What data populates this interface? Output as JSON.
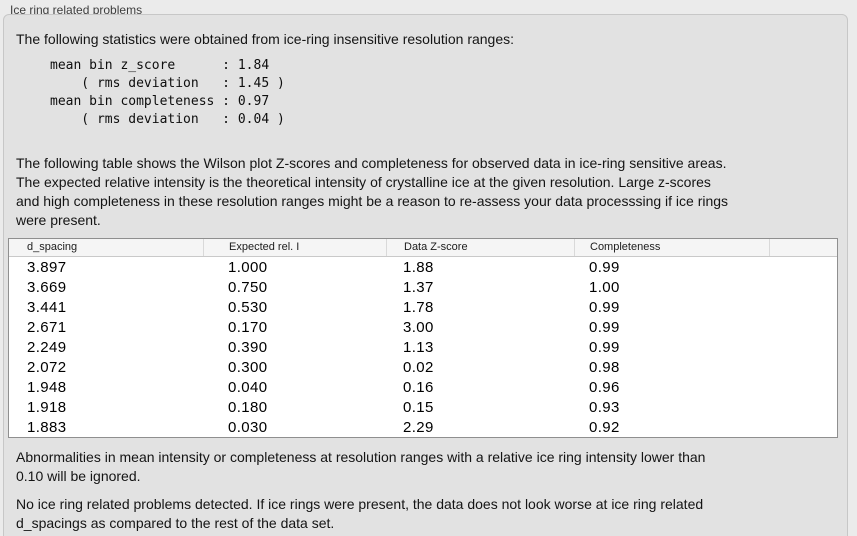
{
  "window": {
    "title": "Ice ring related problems"
  },
  "intro": {
    "text": "The following statistics were obtained from ice-ring insensitive resolution ranges:"
  },
  "stats_block": "mean bin z_score      : 1.84\n    ( rms deviation   : 1.45 )\nmean bin completeness : 0.97\n    ( rms deviation   : 0.04 )",
  "description": {
    "text": "The following table shows the Wilson plot Z-scores and completeness for observed data in ice-ring sensitive areas.\nThe expected relative intensity is the theoretical intensity of crystalline ice at the given resolution. Large z-scores\nand high completeness in these resolution ranges might be a reason to re-assess your data processsing if ice rings\nwere present."
  },
  "table": {
    "columns": [
      "d_spacing",
      "Expected rel. I",
      "Data Z-score",
      "Completeness"
    ],
    "rows": [
      [
        "3.897",
        "1.000",
        "1.88",
        "0.99"
      ],
      [
        "3.669",
        "0.750",
        "1.37",
        "1.00"
      ],
      [
        "3.441",
        "0.530",
        "1.78",
        "0.99"
      ],
      [
        "2.671",
        "0.170",
        "3.00",
        "0.99"
      ],
      [
        "2.249",
        "0.390",
        "1.13",
        "0.99"
      ],
      [
        "2.072",
        "0.300",
        "0.02",
        "0.98"
      ],
      [
        "1.948",
        "0.040",
        "0.16",
        "0.96"
      ],
      [
        "1.918",
        "0.180",
        "0.15",
        "0.93"
      ],
      [
        "1.883",
        "0.030",
        "2.29",
        "0.92"
      ]
    ]
  },
  "notes": {
    "ignore_note": "Abnormalities in mean intensity or completeness at resolution ranges with a relative ice ring intensity lower than\n0.10 will be ignored.",
    "result_note": "No ice ring related problems detected. If ice rings were present, the data does not look worse at ice ring related\nd_spacings as compared to the rest of the data set."
  },
  "colors": {
    "page_background": "#ebebeb",
    "groupbox_background": "#e2e2e2",
    "groupbox_border": "#c7c7c7",
    "table_border": "#8f8f8f",
    "table_header_background": "#f5f5f5",
    "text": "#141414"
  }
}
